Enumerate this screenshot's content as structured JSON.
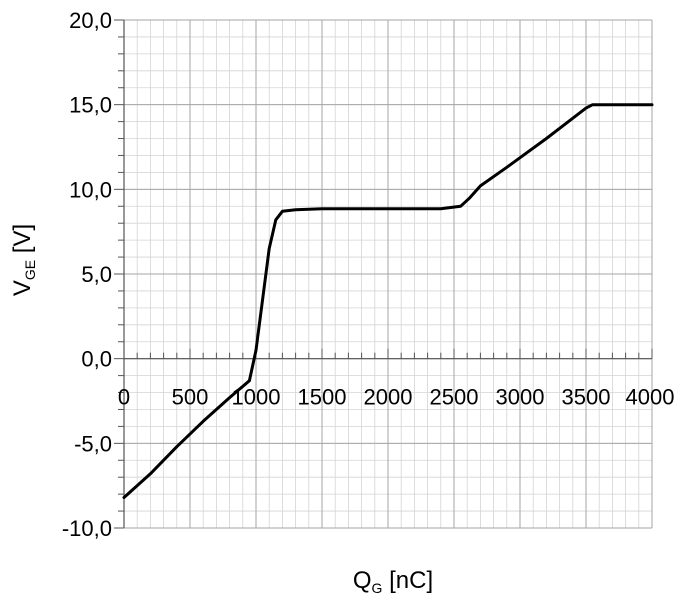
{
  "chart_data": {
    "type": "line",
    "xlabel": {
      "main": "Q",
      "sub": "G",
      "unit": " [nC]"
    },
    "ylabel": {
      "main": "V",
      "sub": "GE",
      "unit": " [V]"
    },
    "xlim": [
      0,
      4000
    ],
    "ylim": [
      -10,
      20
    ],
    "x_ticks": [
      0,
      500,
      1000,
      1500,
      2000,
      2500,
      3000,
      3500,
      4000
    ],
    "x_tick_labels": [
      "0",
      "500",
      "1000",
      "1500",
      "2000",
      "2500",
      "3000",
      "3500",
      "4000"
    ],
    "y_ticks": [
      -10,
      -5,
      0,
      5,
      10,
      15,
      20
    ],
    "y_tick_labels": [
      "-10,0",
      "-5,0",
      "0,0",
      "5,0",
      "10,0",
      "15,0",
      "20,0"
    ],
    "grid": true,
    "minor_grid": true,
    "series": [
      {
        "color": "#000000",
        "x": [
          0,
          200,
          400,
          600,
          800,
          950,
          1000,
          1050,
          1100,
          1150,
          1200,
          1300,
          1500,
          2000,
          2400,
          2550,
          2620,
          2700,
          2900,
          3200,
          3500,
          3550,
          4000
        ],
        "y": [
          -8.2,
          -6.8,
          -5.2,
          -3.7,
          -2.3,
          -1.3,
          0.5,
          3.5,
          6.5,
          8.2,
          8.7,
          8.8,
          8.85,
          8.85,
          8.85,
          9.0,
          9.5,
          10.2,
          11.3,
          13.0,
          14.8,
          15.0,
          15.0
        ]
      }
    ]
  }
}
